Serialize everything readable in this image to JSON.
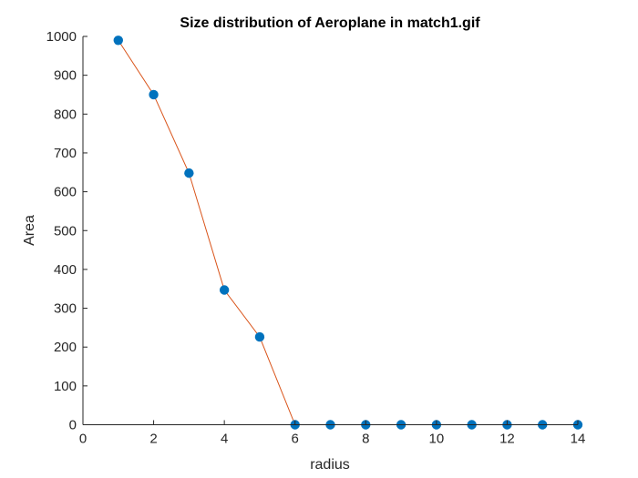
{
  "chart_data": {
    "type": "line",
    "title": "Size distribution of Aeroplane in match1.gif",
    "xlabel": "radius",
    "ylabel": "Area",
    "xlim": [
      0,
      14
    ],
    "ylim": [
      0,
      1000
    ],
    "xticks": [
      0,
      2,
      4,
      6,
      8,
      10,
      12,
      14
    ],
    "yticks": [
      0,
      100,
      200,
      300,
      400,
      500,
      600,
      700,
      800,
      900,
      1000
    ],
    "grid": false,
    "series": [
      {
        "x": [
          1,
          2,
          3,
          4,
          5,
          6,
          7,
          8,
          9,
          10,
          11,
          12,
          13,
          14
        ],
        "y": [
          990,
          850,
          648,
          347,
          226,
          0,
          0,
          0,
          0,
          0,
          0,
          0,
          0,
          0
        ],
        "line_color": "#D95319",
        "marker_color": "#0072BD"
      }
    ]
  }
}
